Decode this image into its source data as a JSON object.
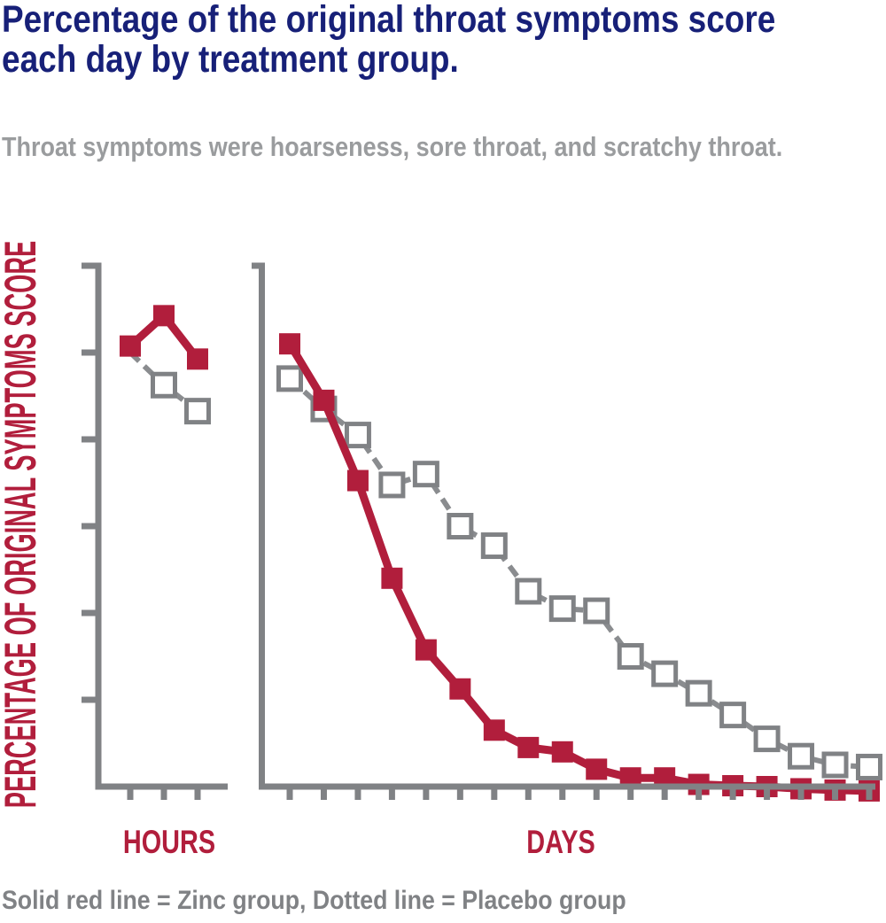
{
  "title": "Percentage of the original throat symptoms score\neach day by treatment group.",
  "subtitle": "Throat symptoms were hoarseness, sore throat, and scratchy throat.",
  "caption": "Solid red line = Zinc group, Dotted line = Placebo group",
  "colors": {
    "title_navy": "#172078",
    "zinc_red": "#b11e3c",
    "axis_gray": "#808285",
    "placebo_line_gray": "#8a8c8f",
    "subtitle_gray": "#9a9c9e",
    "caption_gray": "#808285"
  },
  "chart_data": {
    "type": "line",
    "ylabel": "PERCENTAGE OF ORIGINAL SYMPTOMS SCORE",
    "ylim": [
      0,
      120
    ],
    "ytick_interval": 20,
    "legend_note": "Solid red line = Zinc group, Dotted line = Placebo group",
    "panels": [
      {
        "xlabel": "HOURS",
        "x": [
          1,
          2,
          3
        ],
        "series": [
          {
            "name": "Placebo group",
            "style": "dashed-gray-open-square",
            "values": [
              100,
              92.5,
              86.5
            ]
          },
          {
            "name": "Zinc group",
            "style": "solid-red-filled-square",
            "values": [
              101.5,
              108.5,
              98.5
            ]
          }
        ]
      },
      {
        "xlabel": "DAYS",
        "x": [
          1,
          2,
          3,
          4,
          5,
          6,
          7,
          8,
          9,
          10,
          11,
          12,
          13,
          14,
          15,
          16,
          17,
          18
        ],
        "series": [
          {
            "name": "Placebo group",
            "style": "dashed-gray-open-square",
            "values": [
              94,
              87,
              81,
              69.5,
              72,
              60,
              55.5,
              45,
              41,
              40.5,
              30,
              26,
              21.5,
              16.5,
              11,
              7,
              5,
              4.5
            ]
          },
          {
            "name": "Zinc group",
            "style": "solid-red-filled-square",
            "values": [
              102,
              89,
              70.5,
              48,
              31.5,
              22.5,
              13,
              9,
              8,
              4,
              2,
              2,
              0.5,
              0.2,
              0,
              -0.5,
              -0.8,
              -1
            ]
          }
        ]
      }
    ]
  }
}
